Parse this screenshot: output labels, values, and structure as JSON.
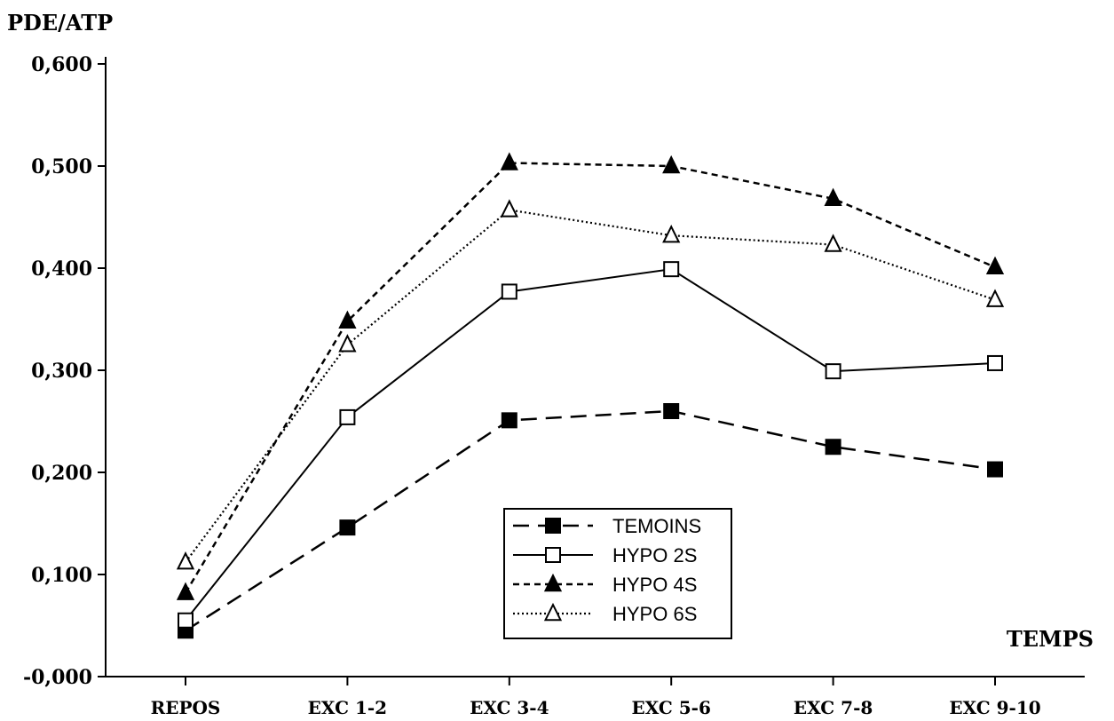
{
  "chart_data": {
    "type": "line",
    "ylabel": "PDE/ATP",
    "xlabel": "TEMPS",
    "categories": [
      "REPOS",
      "EXC 1-2",
      "EXC 3-4",
      "EXC 5-6",
      "EXC 7-8",
      "EXC 9-10"
    ],
    "ylim": [
      0,
      0.6
    ],
    "yticks": [
      0,
      0.1,
      0.2,
      0.3,
      0.4,
      0.5,
      0.6
    ],
    "ytick_labels": [
      "-0,000",
      "0,100",
      "0,200",
      "0,300",
      "0,400",
      "0,500",
      "0,600"
    ],
    "grid": false,
    "legend_position": "bottom-center",
    "series": [
      {
        "name": "TEMOINS",
        "marker": "filled-square",
        "line": "dashed",
        "values": [
          0.045,
          0.146,
          0.251,
          0.26,
          0.225,
          0.203
        ]
      },
      {
        "name": "HYPO 2S",
        "marker": "open-square",
        "line": "solid",
        "values": [
          0.055,
          0.254,
          0.377,
          0.399,
          0.299,
          0.307
        ]
      },
      {
        "name": "HYPO 4S",
        "marker": "filled-triangle",
        "line": "short-dashed",
        "values": [
          0.082,
          0.348,
          0.503,
          0.5,
          0.468,
          0.401
        ]
      },
      {
        "name": "HYPO 6S",
        "marker": "open-triangle",
        "line": "dotted",
        "values": [
          0.112,
          0.325,
          0.457,
          0.432,
          0.423,
          0.369
        ]
      }
    ]
  }
}
